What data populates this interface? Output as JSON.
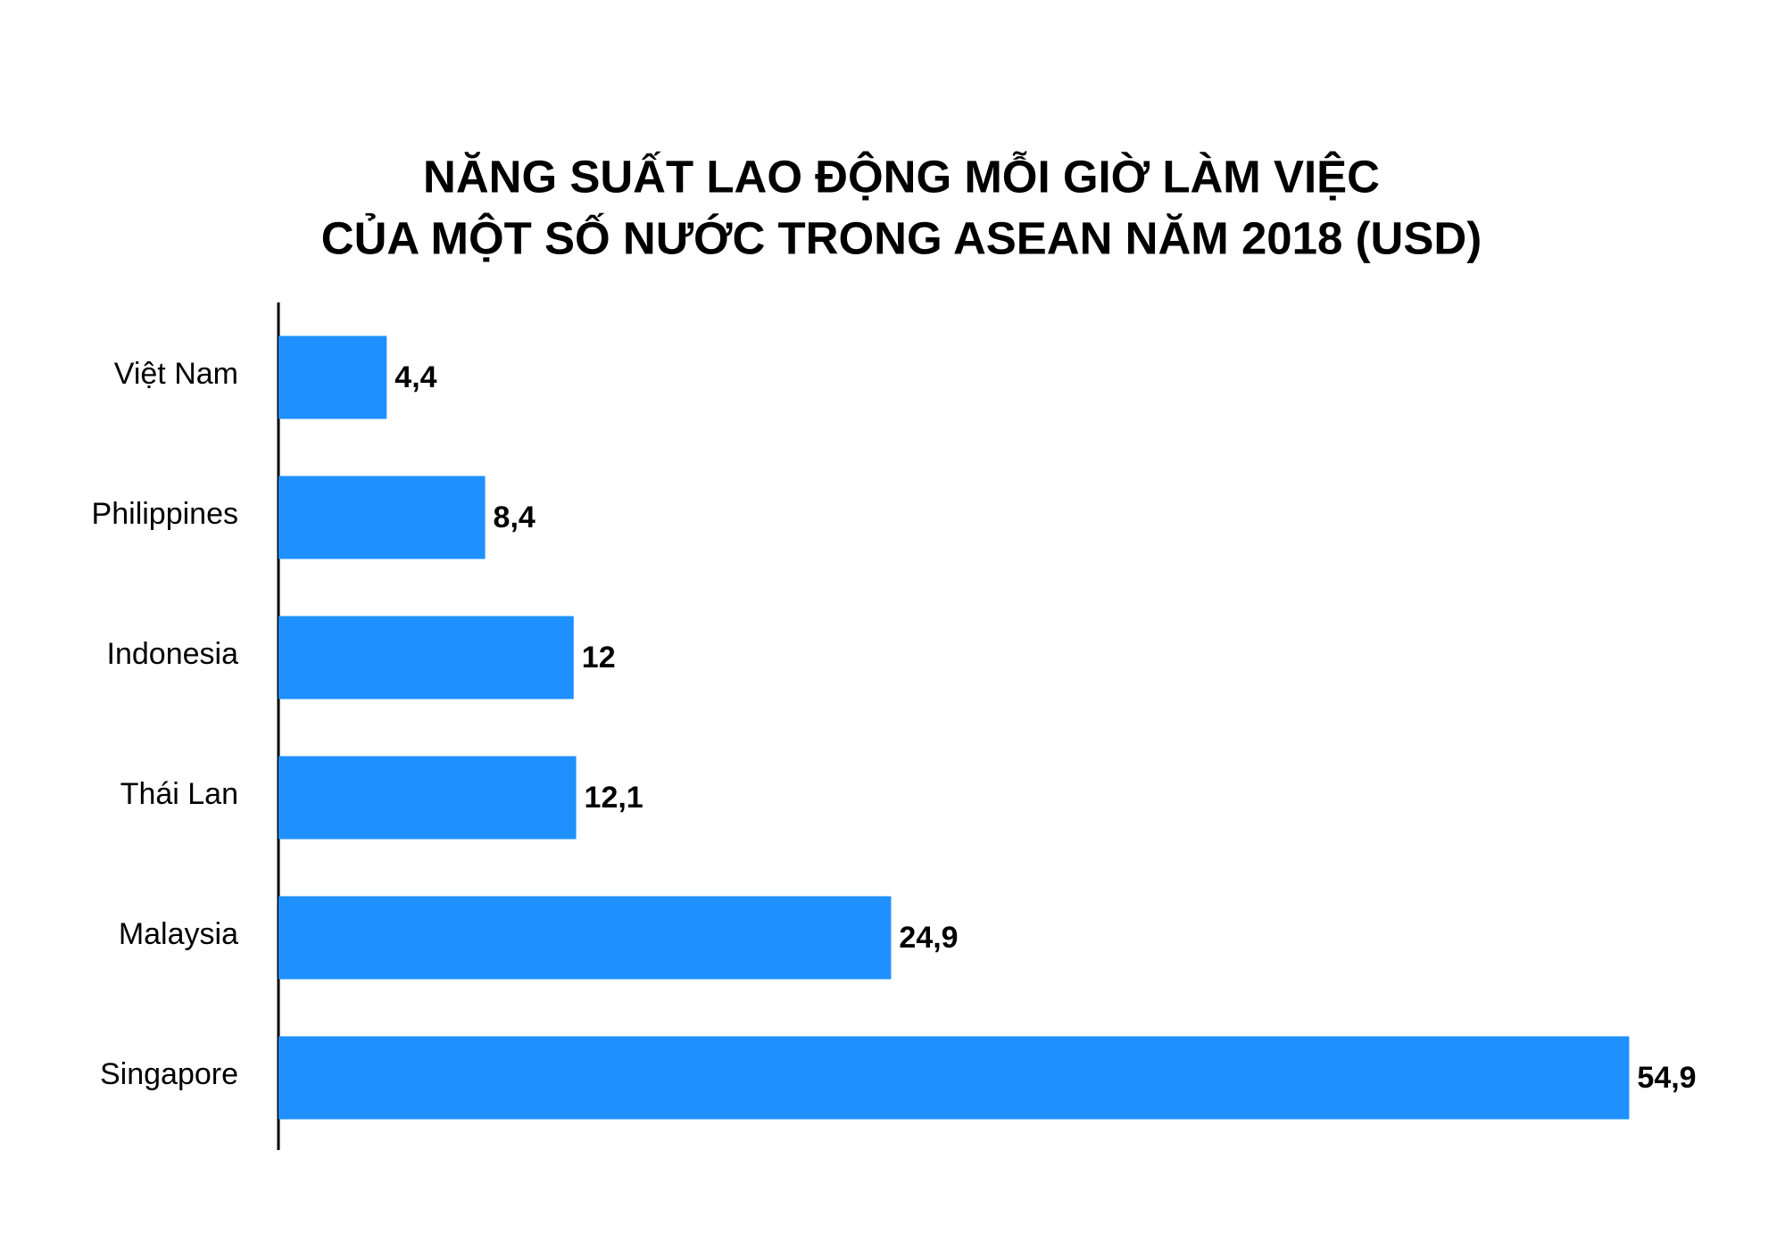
{
  "chart_data": {
    "type": "bar",
    "orientation": "horizontal",
    "title": [
      "NĂNG SUẤT LAO ĐỘNG MỖI GIỜ LÀM VIỆC",
      "CỦA MỘT SỐ NƯỚC TRONG ASEAN NĂM 2018 (USD)"
    ],
    "categories": [
      "Việt Nam",
      "Philippines",
      "Indonesia",
      "Thái Lan",
      "Malaysia",
      "Singapore"
    ],
    "values": [
      4.4,
      8.4,
      12,
      12.1,
      24.9,
      54.9
    ],
    "value_labels": [
      "4,4",
      "8,4",
      "12",
      "12,1",
      "24,9",
      "54,9"
    ],
    "color": "#1e90ff",
    "xlim": [
      0,
      60
    ]
  }
}
